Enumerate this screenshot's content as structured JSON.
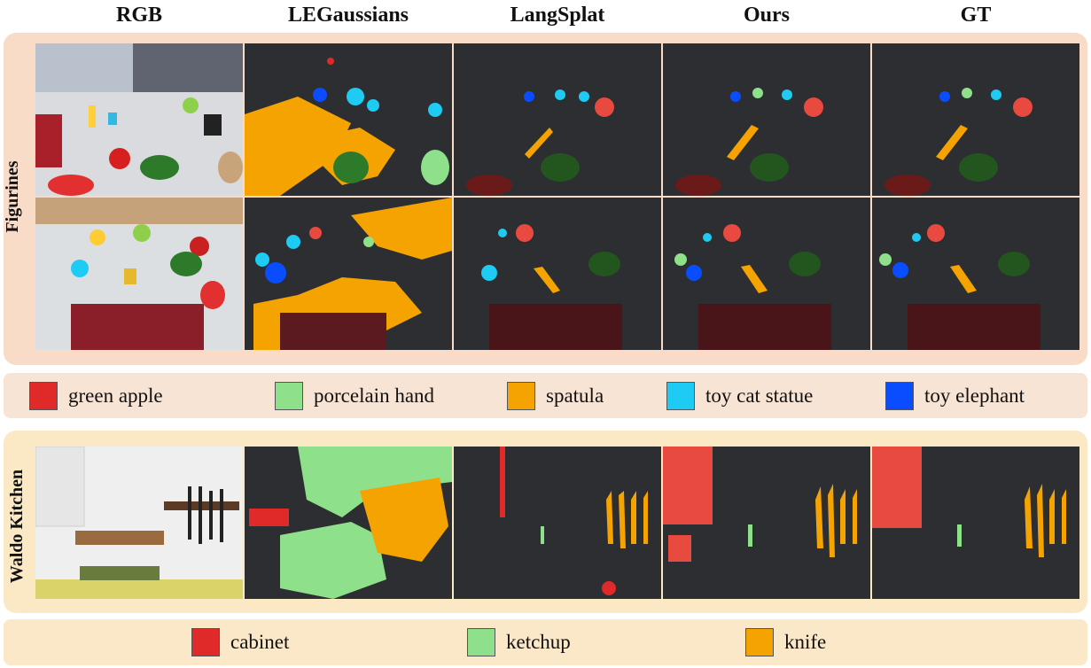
{
  "columns": [
    "RGB",
    "LEGaussians",
    "LangSplat",
    "Ours",
    "GT"
  ],
  "scenes": {
    "figurines": "Figurines",
    "kitchen": "Waldo Kitchen"
  },
  "legend_figurines": [
    {
      "label": "green apple",
      "color": "#e02a2a"
    },
    {
      "label": "porcelain hand",
      "color": "#8ee08a"
    },
    {
      "label": "spatula",
      "color": "#f5a300"
    },
    {
      "label": "toy cat statue",
      "color": "#1ecbf2"
    },
    {
      "label": "toy elephant",
      "color": "#0a4dff"
    }
  ],
  "legend_kitchen": [
    {
      "label": "cabinet",
      "color": "#e02a2a"
    },
    {
      "label": "ketchup",
      "color": "#8ee08a"
    },
    {
      "label": "knife",
      "color": "#f5a300"
    }
  ]
}
